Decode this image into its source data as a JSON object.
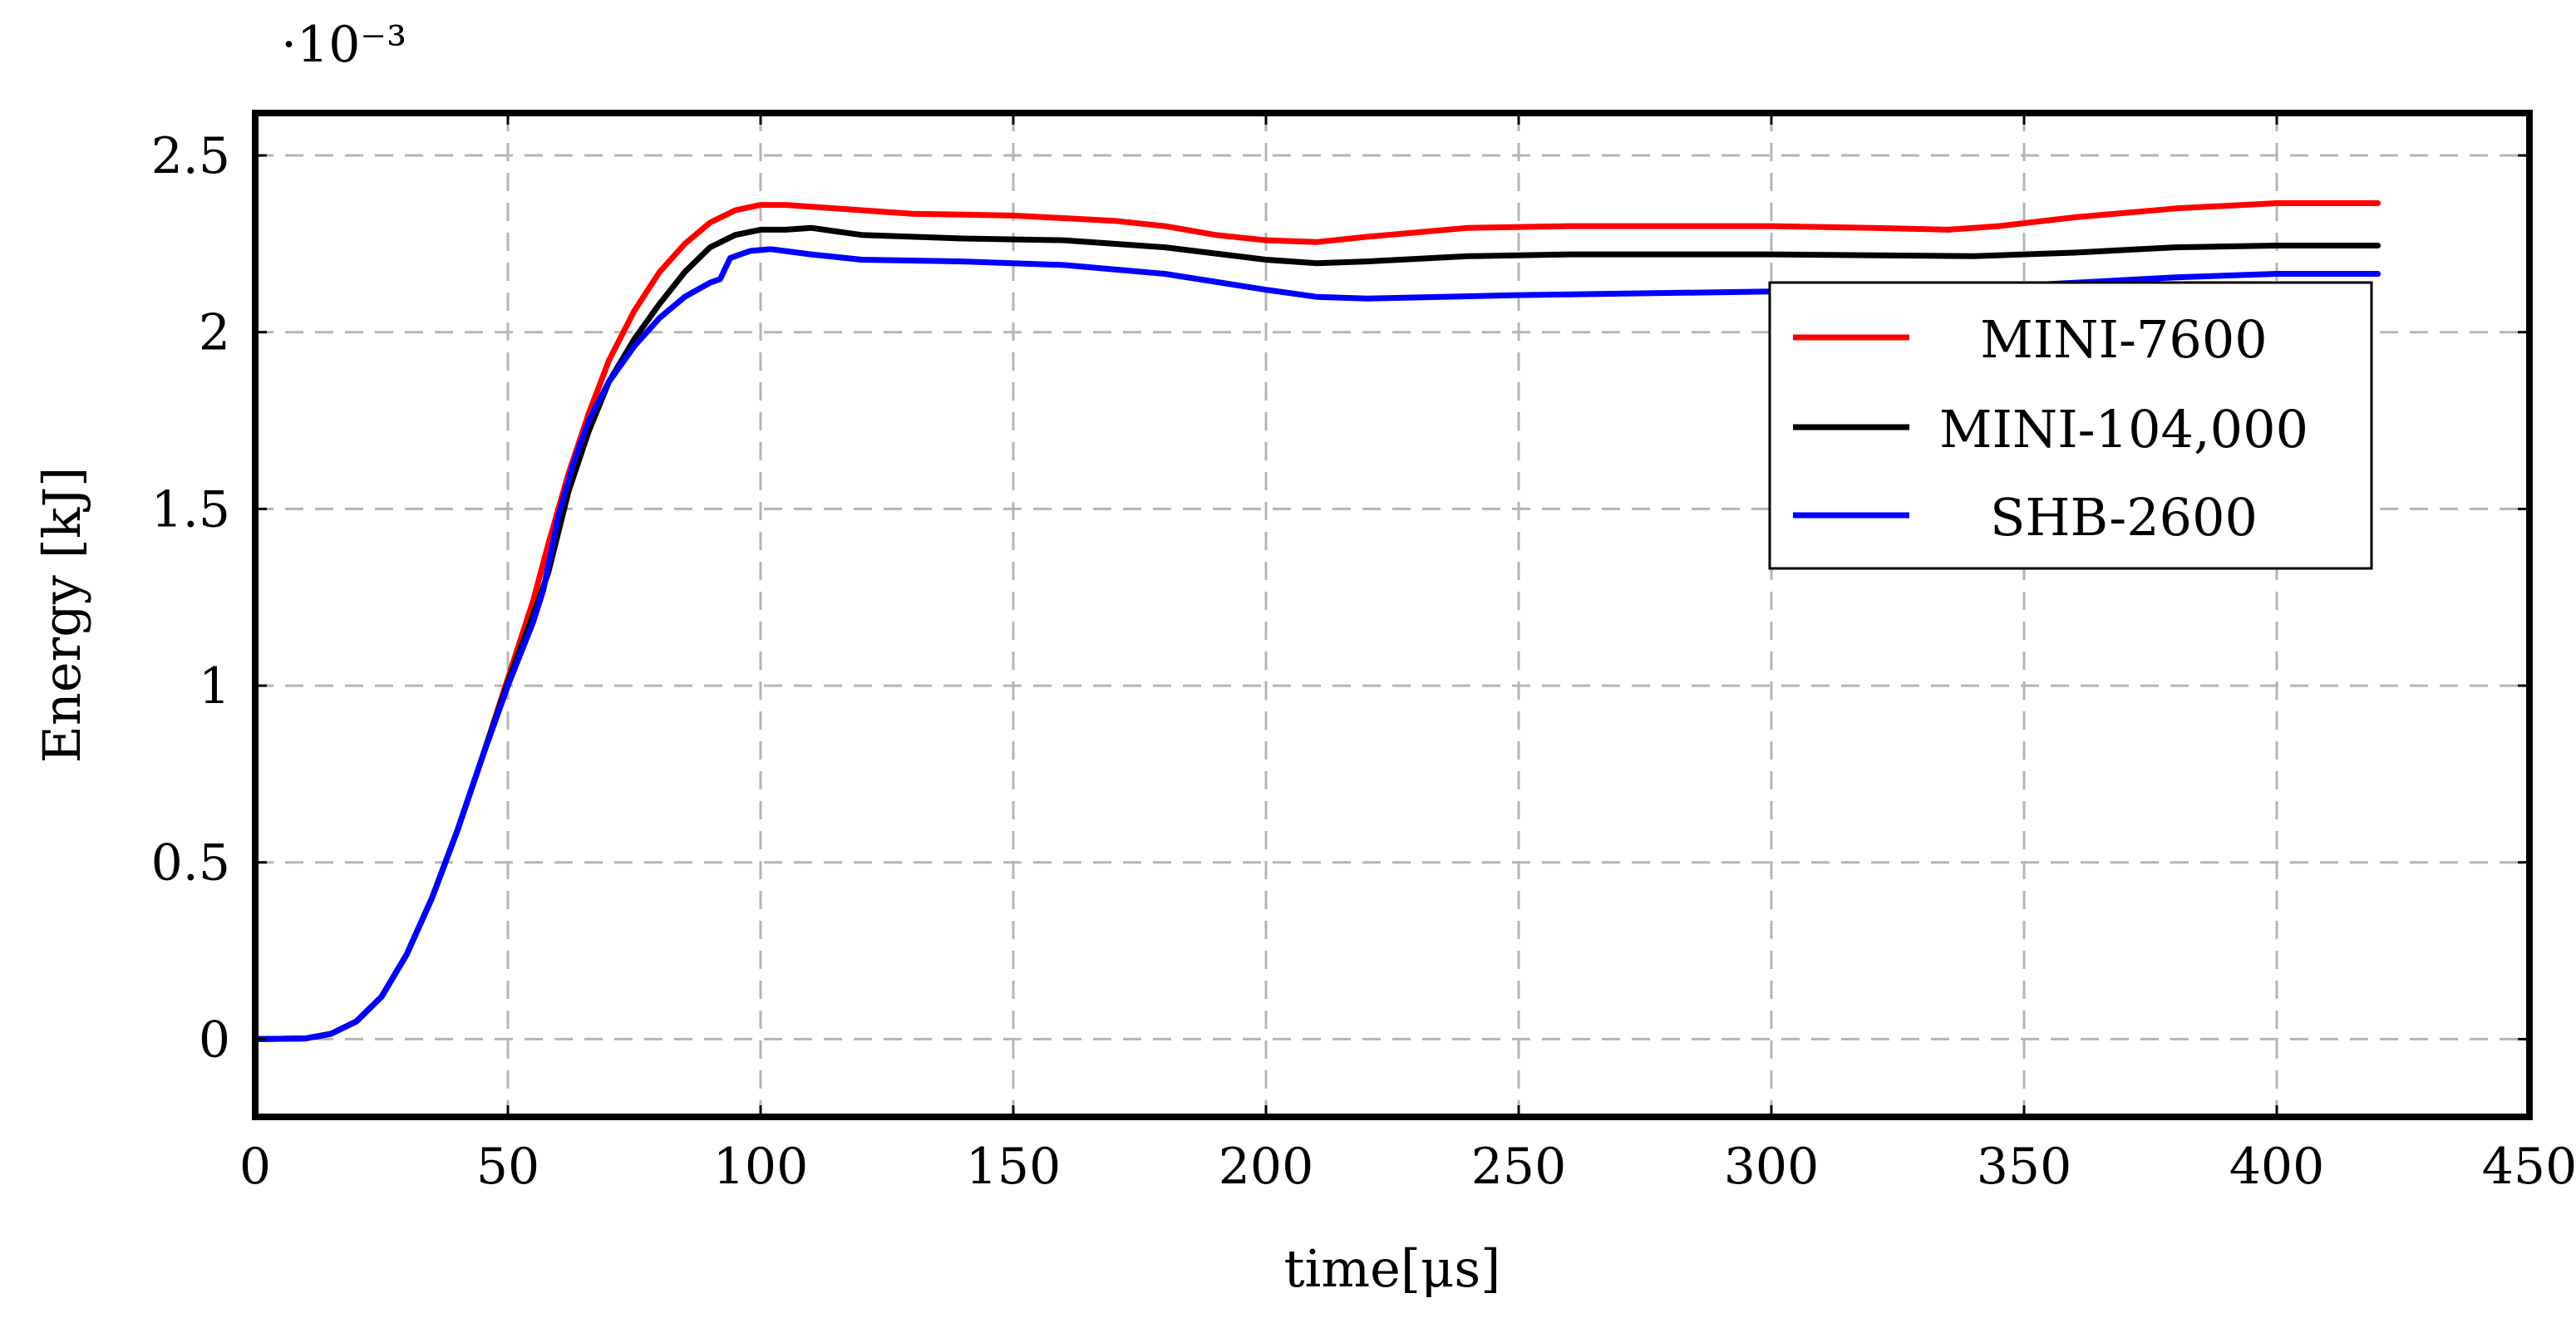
{
  "chart_data": {
    "type": "line",
    "title": "",
    "xlabel": "time[μs]",
    "ylabel": "Energy [kJ]",
    "y_scale_note": "·10⁻³",
    "xlim": [
      0,
      450
    ],
    "ylim": [
      -0.22,
      2.62
    ],
    "x_ticks": [
      0,
      50,
      100,
      150,
      200,
      250,
      300,
      350,
      400,
      450
    ],
    "y_ticks": [
      0,
      0.5,
      1,
      1.5,
      2,
      2.5
    ],
    "x_tick_labels": [
      "0",
      "50",
      "100",
      "150",
      "200",
      "250",
      "300",
      "350",
      "400",
      "450"
    ],
    "y_tick_labels": [
      "0",
      "0.5",
      "1",
      "1.5",
      "2",
      "2.5"
    ],
    "grid": true,
    "legend_position": "upper-right",
    "series": [
      {
        "name": "MINI-7600",
        "color": "#ff0000",
        "points": [
          [
            0,
            0
          ],
          [
            10,
            0.002
          ],
          [
            15,
            0.015
          ],
          [
            20,
            0.05
          ],
          [
            25,
            0.12
          ],
          [
            30,
            0.24
          ],
          [
            35,
            0.4
          ],
          [
            40,
            0.59
          ],
          [
            45,
            0.8
          ],
          [
            50,
            1.02
          ],
          [
            55,
            1.24
          ],
          [
            58,
            1.4
          ],
          [
            62,
            1.6
          ],
          [
            66,
            1.77
          ],
          [
            70,
            1.92
          ],
          [
            75,
            2.06
          ],
          [
            80,
            2.17
          ],
          [
            85,
            2.25
          ],
          [
            90,
            2.31
          ],
          [
            95,
            2.345
          ],
          [
            100,
            2.36
          ],
          [
            105,
            2.36
          ],
          [
            110,
            2.355
          ],
          [
            120,
            2.345
          ],
          [
            130,
            2.335
          ],
          [
            150,
            2.33
          ],
          [
            170,
            2.315
          ],
          [
            180,
            2.3
          ],
          [
            190,
            2.275
          ],
          [
            200,
            2.26
          ],
          [
            210,
            2.255
          ],
          [
            220,
            2.27
          ],
          [
            240,
            2.295
          ],
          [
            260,
            2.3
          ],
          [
            300,
            2.3
          ],
          [
            320,
            2.295
          ],
          [
            335,
            2.29
          ],
          [
            345,
            2.3
          ],
          [
            360,
            2.325
          ],
          [
            380,
            2.35
          ],
          [
            400,
            2.365
          ],
          [
            420,
            2.365
          ]
        ]
      },
      {
        "name": "MINI-104,000",
        "color": "#000000",
        "points": [
          [
            0,
            0
          ],
          [
            10,
            0.002
          ],
          [
            15,
            0.015
          ],
          [
            20,
            0.05
          ],
          [
            25,
            0.12
          ],
          [
            30,
            0.24
          ],
          [
            35,
            0.4
          ],
          [
            40,
            0.59
          ],
          [
            45,
            0.8
          ],
          [
            50,
            1.01
          ],
          [
            55,
            1.2
          ],
          [
            58,
            1.32
          ],
          [
            62,
            1.55
          ],
          [
            66,
            1.72
          ],
          [
            70,
            1.86
          ],
          [
            75,
            1.98
          ],
          [
            80,
            2.08
          ],
          [
            85,
            2.17
          ],
          [
            90,
            2.24
          ],
          [
            95,
            2.275
          ],
          [
            100,
            2.29
          ],
          [
            105,
            2.29
          ],
          [
            110,
            2.295
          ],
          [
            115,
            2.285
          ],
          [
            120,
            2.275
          ],
          [
            140,
            2.265
          ],
          [
            160,
            2.26
          ],
          [
            180,
            2.24
          ],
          [
            200,
            2.205
          ],
          [
            210,
            2.195
          ],
          [
            220,
            2.2
          ],
          [
            240,
            2.215
          ],
          [
            260,
            2.22
          ],
          [
            300,
            2.22
          ],
          [
            340,
            2.215
          ],
          [
            360,
            2.225
          ],
          [
            380,
            2.24
          ],
          [
            400,
            2.245
          ],
          [
            420,
            2.245
          ]
        ]
      },
      {
        "name": "SHB-2600",
        "color": "#0000ff",
        "points": [
          [
            0,
            0
          ],
          [
            10,
            0.002
          ],
          [
            15,
            0.015
          ],
          [
            20,
            0.05
          ],
          [
            25,
            0.12
          ],
          [
            30,
            0.24
          ],
          [
            35,
            0.4
          ],
          [
            40,
            0.59
          ],
          [
            45,
            0.8
          ],
          [
            50,
            1.0
          ],
          [
            55,
            1.18
          ],
          [
            57,
            1.27
          ],
          [
            60,
            1.48
          ],
          [
            63,
            1.63
          ],
          [
            66,
            1.75
          ],
          [
            70,
            1.86
          ],
          [
            75,
            1.96
          ],
          [
            80,
            2.04
          ],
          [
            85,
            2.1
          ],
          [
            90,
            2.14
          ],
          [
            92,
            2.15
          ],
          [
            94,
            2.21
          ],
          [
            98,
            2.23
          ],
          [
            102,
            2.235
          ],
          [
            110,
            2.22
          ],
          [
            120,
            2.205
          ],
          [
            140,
            2.2
          ],
          [
            160,
            2.19
          ],
          [
            180,
            2.165
          ],
          [
            200,
            2.12
          ],
          [
            210,
            2.1
          ],
          [
            220,
            2.095
          ],
          [
            250,
            2.105
          ],
          [
            300,
            2.115
          ],
          [
            340,
            2.125
          ],
          [
            360,
            2.14
          ],
          [
            380,
            2.155
          ],
          [
            400,
            2.165
          ],
          [
            420,
            2.165
          ]
        ]
      }
    ]
  }
}
